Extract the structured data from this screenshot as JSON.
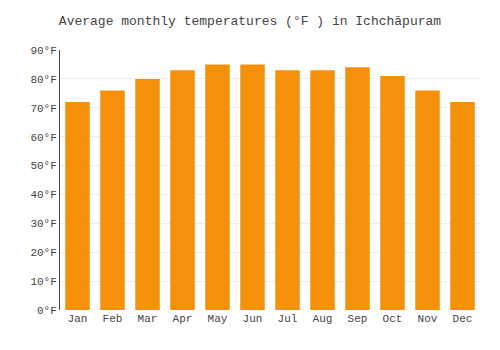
{
  "chart_data": {
    "type": "bar",
    "title": "Average monthly temperatures (°F ) in Ichchāpuram",
    "categories": [
      "Jan",
      "Feb",
      "Mar",
      "Apr",
      "May",
      "Jun",
      "Jul",
      "Aug",
      "Sep",
      "Oct",
      "Nov",
      "Dec"
    ],
    "values": [
      72,
      76,
      80,
      83,
      85,
      85,
      83,
      83,
      84,
      81,
      76,
      72
    ],
    "color": "#F5900A",
    "ylim": [
      0,
      90
    ],
    "yticks": [
      {
        "value": 0,
        "label": "0°F"
      },
      {
        "value": 10,
        "label": "10°F"
      },
      {
        "value": 20,
        "label": "20°F"
      },
      {
        "value": 30,
        "label": "30°F"
      },
      {
        "value": 40,
        "label": "40°F"
      },
      {
        "value": 50,
        "label": "50°F"
      },
      {
        "value": 60,
        "label": "60°F"
      },
      {
        "value": 70,
        "label": "70°F"
      },
      {
        "value": 80,
        "label": "80°F"
      },
      {
        "value": 90,
        "label": "90°F"
      }
    ],
    "grid": true
  }
}
